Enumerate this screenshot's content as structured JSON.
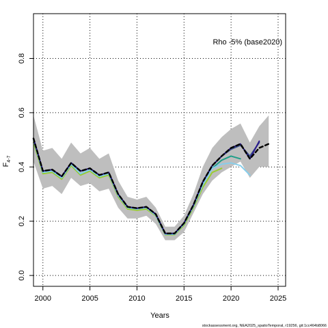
{
  "chart_data": {
    "type": "line",
    "annotation": "Rho -5% (base2020)",
    "xlabel": "Years",
    "ylabel": {
      "main": "F",
      "sub": "4-7"
    },
    "footer": "stockassessment.org, NEA2025_spatioTemporal, r19256, git:1cc464b8066",
    "xlim": [
      1999,
      2025.8
    ],
    "ylim": [
      -0.04,
      0.965
    ],
    "xticks": [
      2000,
      2005,
      2010,
      2015,
      2020,
      2025
    ],
    "yticks": [
      0.0,
      0.2,
      0.4,
      0.6,
      0.8
    ],
    "ytick_labels": [
      "0.0",
      "0.2",
      "0.4",
      "0.6",
      "0.8"
    ],
    "grid": true,
    "band": {
      "name": "confidence band",
      "color": "#bebebe",
      "x": [
        1999,
        2000,
        2001,
        2002,
        2003,
        2004,
        2005,
        2006,
        2007,
        2008,
        2009,
        2010,
        2011,
        2012,
        2013,
        2014,
        2015,
        2016,
        2017,
        2018,
        2019,
        2020,
        2021,
        2022,
        2023,
        2024
      ],
      "upper": [
        0.59,
        0.46,
        0.47,
        0.43,
        0.49,
        0.45,
        0.47,
        0.43,
        0.45,
        0.35,
        0.29,
        0.28,
        0.29,
        0.25,
        0.18,
        0.18,
        0.22,
        0.3,
        0.4,
        0.47,
        0.51,
        0.54,
        0.56,
        0.49,
        0.55,
        0.59
      ],
      "lower": [
        0.42,
        0.32,
        0.33,
        0.3,
        0.36,
        0.33,
        0.34,
        0.31,
        0.32,
        0.25,
        0.21,
        0.21,
        0.22,
        0.19,
        0.13,
        0.13,
        0.16,
        0.23,
        0.3,
        0.35,
        0.38,
        0.4,
        0.42,
        0.36,
        0.4,
        0.4
      ]
    },
    "series": [
      {
        "color": "#9acd32",
        "x": [
          1999,
          2000,
          2001,
          2002,
          2003,
          2004,
          2005,
          2006,
          2007,
          2008,
          2009,
          2010,
          2011,
          2012,
          2013,
          2014,
          2015,
          2016,
          2017,
          2018,
          2019
        ],
        "values": [
          0.49,
          0.375,
          0.38,
          0.355,
          0.405,
          0.37,
          0.385,
          0.36,
          0.37,
          0.29,
          0.245,
          0.24,
          0.245,
          0.22,
          0.15,
          0.15,
          0.185,
          0.25,
          0.325,
          0.38,
          0.395
        ]
      },
      {
        "color": "#1f9e89",
        "x": [
          1999,
          2000,
          2001,
          2002,
          2003,
          2004,
          2005,
          2006,
          2007,
          2008,
          2009,
          2010,
          2011,
          2012,
          2013,
          2014,
          2015,
          2016,
          2017,
          2018,
          2019,
          2020,
          2021
        ],
        "values": [
          0.5,
          0.38,
          0.385,
          0.36,
          0.41,
          0.375,
          0.39,
          0.365,
          0.375,
          0.295,
          0.25,
          0.245,
          0.25,
          0.222,
          0.152,
          0.152,
          0.19,
          0.255,
          0.335,
          0.395,
          0.425,
          0.44,
          0.43
        ]
      },
      {
        "color": "#87ceeb",
        "x": [
          1999,
          2000,
          2001,
          2002,
          2003,
          2004,
          2005,
          2006,
          2007,
          2008,
          2009,
          2010,
          2011,
          2012,
          2013,
          2014,
          2015,
          2016,
          2017,
          2018,
          2019,
          2020,
          2021,
          2022
        ],
        "values": [
          0.5,
          0.38,
          0.385,
          0.36,
          0.41,
          0.375,
          0.39,
          0.365,
          0.375,
          0.295,
          0.25,
          0.245,
          0.25,
          0.222,
          0.152,
          0.152,
          0.19,
          0.255,
          0.335,
          0.395,
          0.41,
          0.415,
          0.405,
          0.37
        ]
      },
      {
        "color": "#3b528b",
        "x": [
          1999,
          2000,
          2001,
          2002,
          2003,
          2004,
          2005,
          2006,
          2007,
          2008,
          2009,
          2010,
          2011,
          2012,
          2013,
          2014,
          2015,
          2016,
          2017,
          2018,
          2019,
          2020,
          2021,
          2022,
          2023
        ],
        "values": [
          0.505,
          0.385,
          0.39,
          0.365,
          0.415,
          0.385,
          0.395,
          0.37,
          0.38,
          0.3,
          0.253,
          0.248,
          0.253,
          0.226,
          0.155,
          0.155,
          0.193,
          0.26,
          0.345,
          0.405,
          0.44,
          0.465,
          0.48,
          0.44,
          0.49
        ]
      },
      {
        "color": "#2a1a8c",
        "x": [
          1999,
          2000,
          2001,
          2002,
          2003,
          2004,
          2005,
          2006,
          2007,
          2008,
          2009,
          2010,
          2011,
          2012,
          2013,
          2014,
          2015,
          2016,
          2017,
          2018,
          2019,
          2020,
          2021,
          2022,
          2023
        ],
        "values": [
          0.505,
          0.385,
          0.39,
          0.365,
          0.415,
          0.385,
          0.395,
          0.37,
          0.38,
          0.3,
          0.253,
          0.248,
          0.253,
          0.226,
          0.155,
          0.155,
          0.193,
          0.26,
          0.345,
          0.405,
          0.44,
          0.47,
          0.485,
          0.43,
          0.495
        ]
      },
      {
        "color": "#000000",
        "dashed": true,
        "x": [
          1999,
          2000,
          2001,
          2002,
          2003,
          2004,
          2005,
          2006,
          2007,
          2008,
          2009,
          2010,
          2011,
          2012,
          2013,
          2014,
          2015,
          2016,
          2017,
          2018,
          2019,
          2020,
          2021,
          2022,
          2023,
          2024
        ],
        "values": [
          0.505,
          0.385,
          0.39,
          0.365,
          0.415,
          0.385,
          0.395,
          0.37,
          0.38,
          0.3,
          0.253,
          0.248,
          0.253,
          0.226,
          0.155,
          0.155,
          0.193,
          0.26,
          0.345,
          0.405,
          0.44,
          0.47,
          0.485,
          0.43,
          0.47,
          0.485
        ]
      }
    ]
  }
}
